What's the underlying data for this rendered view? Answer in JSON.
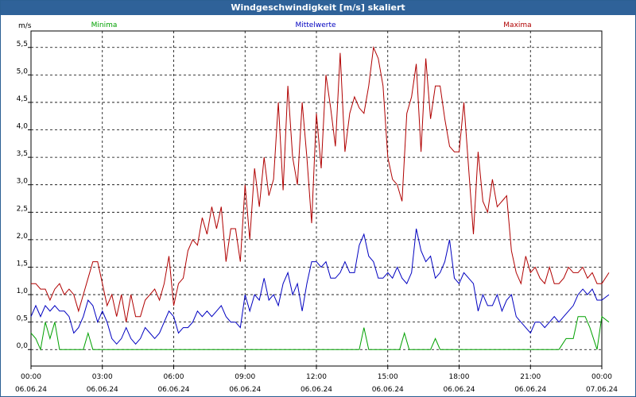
{
  "window": {
    "title": "Windgeschwindigkeit [m/s] skaliert"
  },
  "chart_data": {
    "type": "line",
    "title": "Windgeschwindigkeit [m/s] skaliert",
    "ylabel": "m/s",
    "ylim": [
      -0.3,
      5.8
    ],
    "xlim": [
      0,
      24
    ],
    "grid": true,
    "legend_position": "top",
    "y_ticks": [
      "0,0",
      "0,5",
      "1,0",
      "1,5",
      "2,0",
      "2,5",
      "3,0",
      "3,5",
      "4,0",
      "4,5",
      "5,0",
      "5,5"
    ],
    "x_ticks": [
      {
        "time": "00:00",
        "date": "06.06.24"
      },
      {
        "time": "03:00",
        "date": "06.06.24"
      },
      {
        "time": "06:00",
        "date": "06.06.24"
      },
      {
        "time": "09:00",
        "date": "06.06.24"
      },
      {
        "time": "12:00",
        "date": "06.06.24"
      },
      {
        "time": "15:00",
        "date": "06.06.24"
      },
      {
        "time": "18:00",
        "date": "06.06.24"
      },
      {
        "time": "21:00",
        "date": "06.06.24"
      },
      {
        "time": "00:00",
        "date": "07.06.24"
      }
    ],
    "series": [
      {
        "name": "Minima",
        "color": "#00a000",
        "points": [
          [
            0,
            0.3
          ],
          [
            0.2,
            0.2
          ],
          [
            0.4,
            0.0
          ],
          [
            0.6,
            0.5
          ],
          [
            0.8,
            0.2
          ],
          [
            1.0,
            0.5
          ],
          [
            1.2,
            0.0
          ],
          [
            2.2,
            0.0
          ],
          [
            2.4,
            0.3
          ],
          [
            2.6,
            0.0
          ],
          [
            13.8,
            0.0
          ],
          [
            14.0,
            0.4
          ],
          [
            14.2,
            0.0
          ],
          [
            15.5,
            0.0
          ],
          [
            15.7,
            0.3
          ],
          [
            15.9,
            0.0
          ],
          [
            16.8,
            0.0
          ],
          [
            17.0,
            0.2
          ],
          [
            17.2,
            0.0
          ],
          [
            22.2,
            0.0
          ],
          [
            22.5,
            0.2
          ],
          [
            22.8,
            0.2
          ],
          [
            23.0,
            0.6
          ],
          [
            23.3,
            0.6
          ],
          [
            23.5,
            0.4
          ],
          [
            23.8,
            0.0
          ],
          [
            24.0,
            0.6
          ],
          [
            24.3,
            0.5
          ]
        ]
      },
      {
        "name": "Mittelwerte",
        "color": "#0000c0",
        "points": [
          [
            0,
            0.6
          ],
          [
            0.2,
            0.8
          ],
          [
            0.4,
            0.6
          ],
          [
            0.6,
            0.8
          ],
          [
            0.8,
            0.7
          ],
          [
            1.0,
            0.8
          ],
          [
            1.2,
            0.7
          ],
          [
            1.4,
            0.7
          ],
          [
            1.6,
            0.6
          ],
          [
            1.8,
            0.3
          ],
          [
            2.0,
            0.4
          ],
          [
            2.2,
            0.6
          ],
          [
            2.4,
            0.9
          ],
          [
            2.6,
            0.8
          ],
          [
            2.8,
            0.5
          ],
          [
            3.0,
            0.7
          ],
          [
            3.2,
            0.5
          ],
          [
            3.4,
            0.2
          ],
          [
            3.6,
            0.1
          ],
          [
            3.8,
            0.2
          ],
          [
            4.0,
            0.4
          ],
          [
            4.2,
            0.2
          ],
          [
            4.4,
            0.1
          ],
          [
            4.6,
            0.2
          ],
          [
            4.8,
            0.4
          ],
          [
            5.0,
            0.3
          ],
          [
            5.2,
            0.2
          ],
          [
            5.4,
            0.3
          ],
          [
            5.6,
            0.5
          ],
          [
            5.8,
            0.7
          ],
          [
            6.0,
            0.6
          ],
          [
            6.2,
            0.3
          ],
          [
            6.4,
            0.4
          ],
          [
            6.6,
            0.4
          ],
          [
            6.8,
            0.5
          ],
          [
            7.0,
            0.7
          ],
          [
            7.2,
            0.6
          ],
          [
            7.4,
            0.7
          ],
          [
            7.6,
            0.6
          ],
          [
            7.8,
            0.7
          ],
          [
            8.0,
            0.8
          ],
          [
            8.2,
            0.6
          ],
          [
            8.4,
            0.5
          ],
          [
            8.6,
            0.5
          ],
          [
            8.8,
            0.4
          ],
          [
            9.0,
            1.0
          ],
          [
            9.2,
            0.7
          ],
          [
            9.4,
            1.0
          ],
          [
            9.6,
            0.9
          ],
          [
            9.8,
            1.3
          ],
          [
            10.0,
            0.9
          ],
          [
            10.2,
            1.0
          ],
          [
            10.4,
            0.8
          ],
          [
            10.6,
            1.2
          ],
          [
            10.8,
            1.4
          ],
          [
            11.0,
            1.0
          ],
          [
            11.2,
            1.2
          ],
          [
            11.4,
            0.7
          ],
          [
            11.6,
            1.2
          ],
          [
            11.8,
            1.6
          ],
          [
            12.0,
            1.6
          ],
          [
            12.2,
            1.5
          ],
          [
            12.4,
            1.6
          ],
          [
            12.6,
            1.3
          ],
          [
            12.8,
            1.3
          ],
          [
            13.0,
            1.4
          ],
          [
            13.2,
            1.6
          ],
          [
            13.4,
            1.4
          ],
          [
            13.6,
            1.4
          ],
          [
            13.8,
            1.9
          ],
          [
            14.0,
            2.1
          ],
          [
            14.2,
            1.7
          ],
          [
            14.4,
            1.6
          ],
          [
            14.6,
            1.3
          ],
          [
            14.8,
            1.3
          ],
          [
            15.0,
            1.4
          ],
          [
            15.2,
            1.3
          ],
          [
            15.4,
            1.5
          ],
          [
            15.6,
            1.3
          ],
          [
            15.8,
            1.2
          ],
          [
            16.0,
            1.4
          ],
          [
            16.2,
            2.2
          ],
          [
            16.4,
            1.8
          ],
          [
            16.6,
            1.6
          ],
          [
            16.8,
            1.7
          ],
          [
            17.0,
            1.3
          ],
          [
            17.2,
            1.4
          ],
          [
            17.4,
            1.6
          ],
          [
            17.6,
            2.0
          ],
          [
            17.8,
            1.3
          ],
          [
            18.0,
            1.2
          ],
          [
            18.2,
            1.4
          ],
          [
            18.4,
            1.3
          ],
          [
            18.6,
            1.2
          ],
          [
            18.8,
            0.7
          ],
          [
            19.0,
            1.0
          ],
          [
            19.2,
            0.8
          ],
          [
            19.4,
            0.8
          ],
          [
            19.6,
            1.0
          ],
          [
            19.8,
            0.7
          ],
          [
            20.0,
            0.9
          ],
          [
            20.2,
            1.0
          ],
          [
            20.4,
            0.6
          ],
          [
            20.6,
            0.5
          ],
          [
            20.8,
            0.4
          ],
          [
            21.0,
            0.3
          ],
          [
            21.2,
            0.5
          ],
          [
            21.4,
            0.5
          ],
          [
            21.6,
            0.4
          ],
          [
            21.8,
            0.5
          ],
          [
            22.0,
            0.6
          ],
          [
            22.2,
            0.5
          ],
          [
            22.4,
            0.6
          ],
          [
            22.6,
            0.7
          ],
          [
            22.8,
            0.8
          ],
          [
            23.0,
            1.0
          ],
          [
            23.2,
            1.1
          ],
          [
            23.4,
            1.0
          ],
          [
            23.6,
            1.1
          ],
          [
            23.8,
            0.9
          ],
          [
            24.0,
            0.9
          ],
          [
            24.3,
            1.0
          ]
        ]
      },
      {
        "name": "Maxima",
        "color": "#b00000",
        "points": [
          [
            0,
            1.2
          ],
          [
            0.2,
            1.2
          ],
          [
            0.4,
            1.1
          ],
          [
            0.6,
            1.1
          ],
          [
            0.8,
            0.9
          ],
          [
            1.0,
            1.1
          ],
          [
            1.2,
            1.2
          ],
          [
            1.4,
            1.0
          ],
          [
            1.6,
            1.1
          ],
          [
            1.8,
            1.0
          ],
          [
            2.0,
            0.7
          ],
          [
            2.2,
            1.0
          ],
          [
            2.4,
            1.3
          ],
          [
            2.6,
            1.6
          ],
          [
            2.8,
            1.6
          ],
          [
            3.0,
            1.2
          ],
          [
            3.2,
            0.8
          ],
          [
            3.4,
            1.0
          ],
          [
            3.6,
            0.6
          ],
          [
            3.8,
            1.0
          ],
          [
            4.0,
            0.5
          ],
          [
            4.2,
            1.0
          ],
          [
            4.4,
            0.6
          ],
          [
            4.6,
            0.6
          ],
          [
            4.8,
            0.9
          ],
          [
            5.0,
            1.0
          ],
          [
            5.2,
            1.1
          ],
          [
            5.4,
            0.9
          ],
          [
            5.6,
            1.2
          ],
          [
            5.8,
            1.7
          ],
          [
            6.0,
            0.8
          ],
          [
            6.2,
            1.2
          ],
          [
            6.4,
            1.3
          ],
          [
            6.6,
            1.8
          ],
          [
            6.8,
            2.0
          ],
          [
            7.0,
            1.9
          ],
          [
            7.2,
            2.4
          ],
          [
            7.4,
            2.1
          ],
          [
            7.6,
            2.6
          ],
          [
            7.8,
            2.2
          ],
          [
            8.0,
            2.6
          ],
          [
            8.2,
            1.6
          ],
          [
            8.4,
            2.2
          ],
          [
            8.6,
            2.2
          ],
          [
            8.8,
            1.6
          ],
          [
            9.0,
            3.0
          ],
          [
            9.2,
            2.0
          ],
          [
            9.4,
            3.3
          ],
          [
            9.6,
            2.6
          ],
          [
            9.8,
            3.5
          ],
          [
            10.0,
            2.8
          ],
          [
            10.2,
            3.1
          ],
          [
            10.4,
            4.5
          ],
          [
            10.6,
            2.9
          ],
          [
            10.8,
            4.8
          ],
          [
            11.0,
            3.5
          ],
          [
            11.2,
            3.0
          ],
          [
            11.4,
            4.5
          ],
          [
            11.6,
            3.5
          ],
          [
            11.8,
            2.3
          ],
          [
            12.0,
            4.3
          ],
          [
            12.2,
            3.3
          ],
          [
            12.4,
            5.0
          ],
          [
            12.6,
            4.4
          ],
          [
            12.8,
            3.7
          ],
          [
            13.0,
            5.4
          ],
          [
            13.2,
            3.6
          ],
          [
            13.4,
            4.3
          ],
          [
            13.6,
            4.6
          ],
          [
            13.8,
            4.4
          ],
          [
            14.0,
            4.3
          ],
          [
            14.2,
            4.8
          ],
          [
            14.4,
            5.5
          ],
          [
            14.6,
            5.3
          ],
          [
            14.8,
            4.8
          ],
          [
            15.0,
            3.5
          ],
          [
            15.2,
            3.1
          ],
          [
            15.4,
            3.0
          ],
          [
            15.6,
            2.7
          ],
          [
            15.8,
            4.3
          ],
          [
            16.0,
            4.6
          ],
          [
            16.2,
            5.2
          ],
          [
            16.4,
            3.6
          ],
          [
            16.6,
            5.3
          ],
          [
            16.8,
            4.2
          ],
          [
            17.0,
            4.8
          ],
          [
            17.2,
            4.8
          ],
          [
            17.4,
            4.2
          ],
          [
            17.6,
            3.7
          ],
          [
            17.8,
            3.6
          ],
          [
            18.0,
            3.6
          ],
          [
            18.2,
            4.5
          ],
          [
            18.4,
            3.3
          ],
          [
            18.6,
            2.1
          ],
          [
            18.8,
            3.6
          ],
          [
            19.0,
            2.7
          ],
          [
            19.2,
            2.5
          ],
          [
            19.4,
            3.1
          ],
          [
            19.6,
            2.6
          ],
          [
            19.8,
            2.7
          ],
          [
            20.0,
            2.8
          ],
          [
            20.2,
            1.8
          ],
          [
            20.4,
            1.4
          ],
          [
            20.6,
            1.2
          ],
          [
            20.8,
            1.7
          ],
          [
            21.0,
            1.4
          ],
          [
            21.2,
            1.5
          ],
          [
            21.4,
            1.3
          ],
          [
            21.6,
            1.2
          ],
          [
            21.8,
            1.5
          ],
          [
            22.0,
            1.2
          ],
          [
            22.2,
            1.2
          ],
          [
            22.4,
            1.3
          ],
          [
            22.6,
            1.5
          ],
          [
            22.8,
            1.4
          ],
          [
            23.0,
            1.4
          ],
          [
            23.2,
            1.5
          ],
          [
            23.4,
            1.3
          ],
          [
            23.6,
            1.4
          ],
          [
            23.8,
            1.2
          ],
          [
            24.0,
            1.2
          ],
          [
            24.3,
            1.4
          ]
        ]
      }
    ]
  }
}
